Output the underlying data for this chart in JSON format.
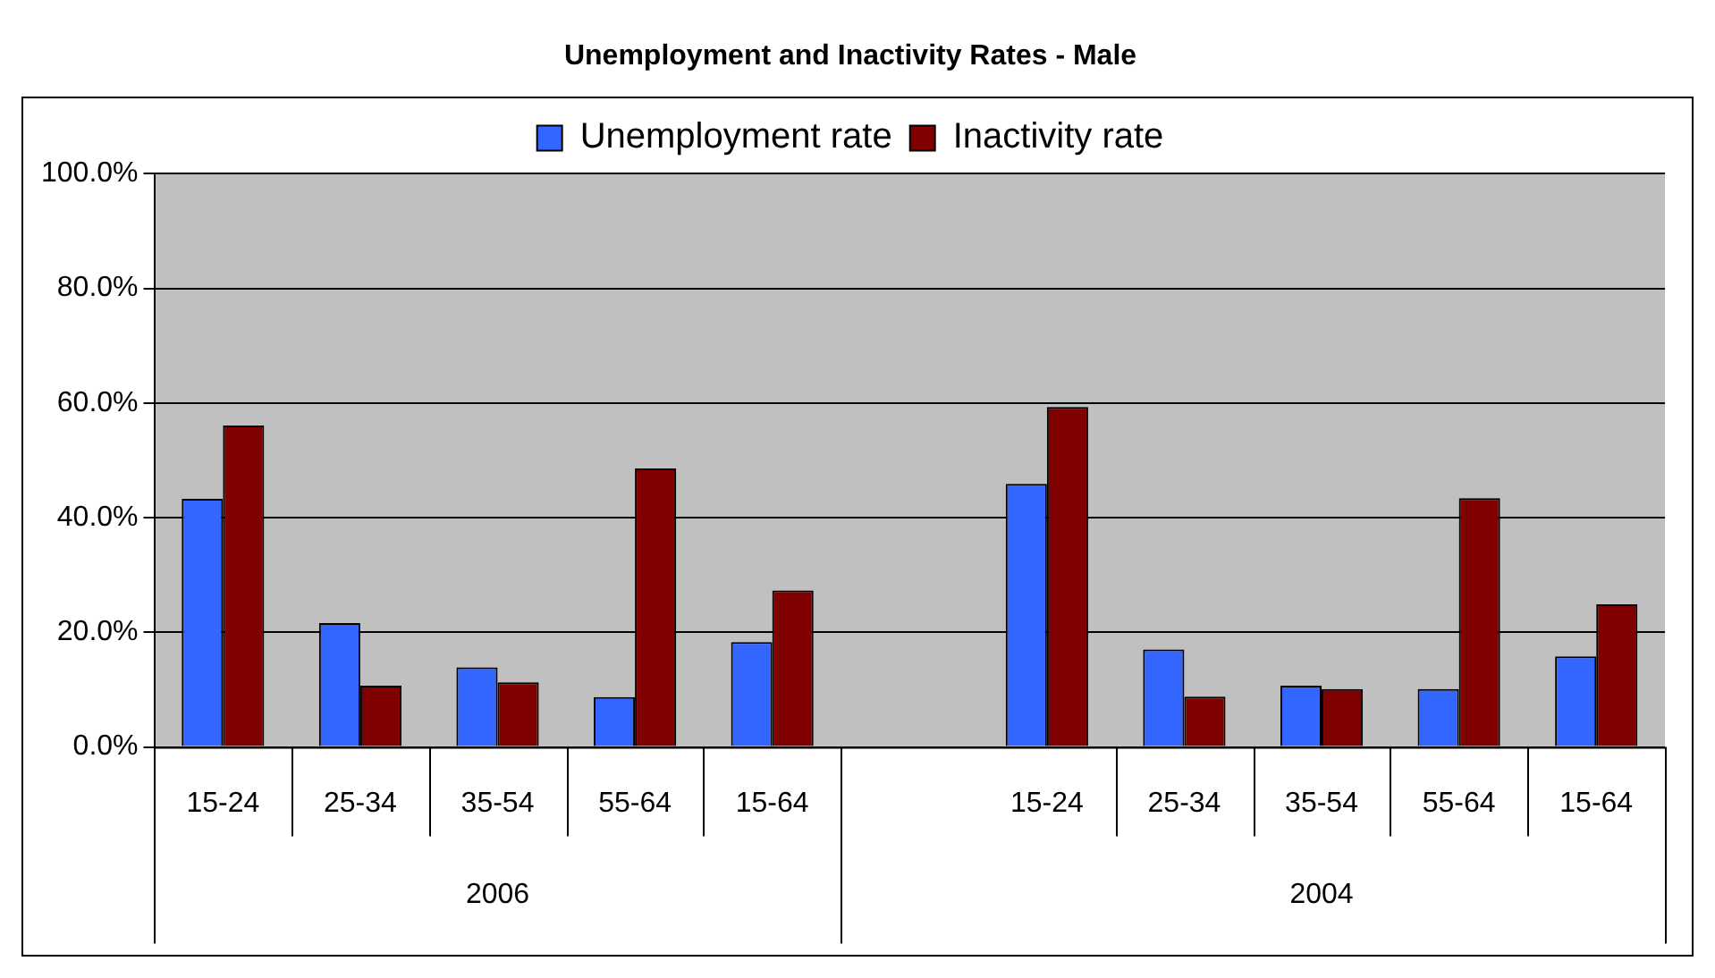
{
  "chart_data": {
    "type": "bar",
    "title": "Unemployment and Inactivity Rates - Male",
    "categories": [
      "15-24",
      "25-34",
      "35-54",
      "55-64",
      "15-64",
      null,
      "15-24",
      "25-34",
      "35-54",
      "55-64",
      "15-64"
    ],
    "series": [
      {
        "name": "Unemployment rate",
        "color": "#3366ff",
        "values": [
          43.3,
          21.6,
          13.9,
          8.7,
          18.3,
          null,
          45.9,
          17.0,
          10.7,
          10.1,
          15.8
        ]
      },
      {
        "name": "Inactivity rate",
        "color": "#800000",
        "values": [
          56.1,
          10.7,
          11.3,
          48.6,
          27.3,
          null,
          59.3,
          8.8,
          10.1,
          43.4,
          24.9
        ]
      }
    ],
    "annotations": [
      "2006",
      "2004"
    ],
    "ylim": [
      0,
      100
    ],
    "yticks": [
      {
        "value": 0,
        "label": "0.0%"
      },
      {
        "value": 20,
        "label": "20.0%"
      },
      {
        "value": 40,
        "label": "40.0%"
      },
      {
        "value": 60,
        "label": "60.0%"
      },
      {
        "value": 80,
        "label": "80.0%"
      },
      {
        "value": 100,
        "label": "100.0%"
      }
    ],
    "grid": "y",
    "legend": "top"
  }
}
